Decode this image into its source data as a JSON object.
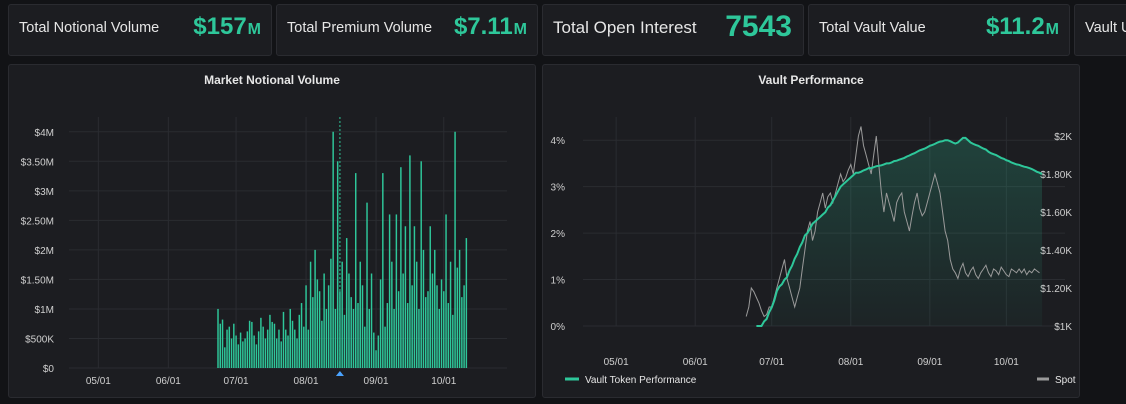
{
  "stats": [
    {
      "label": "Total Notional Volume",
      "value": "$157",
      "unit": "M"
    },
    {
      "label": "Total Premium Volume",
      "value": "$7.11",
      "unit": "M"
    },
    {
      "label": "Total Open Interest",
      "value": "7543",
      "unit": ""
    },
    {
      "label": "Total Vault Value",
      "value": "$11.2",
      "unit": "M"
    },
    {
      "label": "Vault U",
      "value": "",
      "unit": ""
    }
  ],
  "colors": {
    "accent": "#2ec79a",
    "spot": "#9a9a9a",
    "background": "#121316",
    "panel": "#1c1d21",
    "grid": "#2a2c31"
  },
  "chart_data": [
    {
      "type": "bar",
      "title": "Market Notional Volume",
      "x_ticks": [
        "05/01",
        "06/01",
        "07/01",
        "08/01",
        "09/01",
        "10/01"
      ],
      "y_ticks": [
        "$0",
        "$500K",
        "$1M",
        "$1.50M",
        "$2M",
        "$2.50M",
        "$3M",
        "$3.50M",
        "$4M"
      ],
      "ylim": [
        0,
        4250000
      ],
      "grid": true,
      "marker_date": "08/16",
      "series": [
        {
          "x_start": "06/23",
          "values": [
            1000000,
            750000,
            820000,
            350000,
            650000,
            700000,
            500000,
            750000,
            550000,
            400000,
            600000,
            450000,
            500000,
            620000,
            800000,
            780000,
            550000,
            400000,
            620000,
            850000,
            700000,
            500000,
            650000,
            900000,
            780000,
            750000,
            500000,
            650000,
            450000,
            950000,
            650000,
            550000,
            1000000,
            800000,
            650000,
            500000,
            900000,
            1100000,
            700000,
            1400000,
            650000,
            1800000,
            1200000,
            2000000,
            1500000,
            1300000,
            800000,
            1600000,
            1000000,
            1400000,
            1850000,
            4000000,
            1000000,
            3500000,
            1300000,
            1800000,
            900000,
            2200000,
            1600000,
            1200000,
            1000000,
            3300000,
            1100000,
            1800000,
            1400000,
            700000,
            2800000,
            1000000,
            1600000,
            600000,
            300000,
            550000,
            1500000,
            3300000,
            700000,
            1100000,
            2600000,
            1800000,
            1000000,
            2600000,
            1300000,
            3400000,
            1600000,
            2400000,
            1100000,
            3600000,
            1400000,
            2400000,
            1800000,
            1000000,
            3500000,
            2000000,
            1200000,
            1300000,
            2400000,
            1600000,
            2000000,
            1400000,
            1000000,
            1500000,
            1300000,
            2600000,
            1100000,
            1800000,
            900000,
            4000000,
            1700000,
            2000000,
            1200000,
            1400000,
            2200000
          ]
        }
      ]
    },
    {
      "type": "line",
      "title": "Vault Performance",
      "x_ticks": [
        "05/01",
        "06/01",
        "07/01",
        "08/01",
        "09/01",
        "10/01"
      ],
      "y_left_ticks": [
        "0%",
        "1%",
        "2%",
        "3%",
        "4%"
      ],
      "y_right_ticks": [
        "$1K",
        "$1.20K",
        "$1.40K",
        "$1.60K",
        "$1.80K",
        "$2K"
      ],
      "ylim_left": [
        0,
        4.5
      ],
      "ylim_right": [
        1000,
        2100
      ],
      "grid": true,
      "legend": "bottom",
      "series": [
        {
          "name": "Vault Token Performance",
          "axis": "left",
          "x_start": "06/25",
          "values": [
            0,
            0,
            0,
            0.1,
            0.15,
            0.3,
            0.4,
            0.55,
            0.75,
            0.85,
            0.9,
            1.0,
            1.05,
            1.2,
            1.3,
            1.45,
            1.55,
            1.7,
            1.8,
            1.95,
            2.0,
            2.1,
            2.2,
            2.25,
            2.3,
            2.35,
            2.4,
            2.45,
            2.55,
            2.6,
            2.7,
            2.8,
            2.9,
            3.0,
            3.05,
            3.1,
            3.15,
            3.2,
            3.25,
            3.3,
            3.3,
            3.32,
            3.35,
            3.37,
            3.4,
            3.4,
            3.42,
            3.44,
            3.45,
            3.46,
            3.48,
            3.5,
            3.5,
            3.52,
            3.55,
            3.56,
            3.58,
            3.6,
            3.62,
            3.65,
            3.67,
            3.7,
            3.72,
            3.75,
            3.78,
            3.8,
            3.82,
            3.85,
            3.88,
            3.9,
            3.92,
            3.95,
            3.97,
            3.98,
            4.0,
            4.0,
            3.98,
            3.95,
            3.93,
            3.95,
            4.0,
            4.05,
            4.05,
            4.0,
            3.95,
            3.92,
            3.9,
            3.88,
            3.85,
            3.82,
            3.8,
            3.75,
            3.72,
            3.7,
            3.68,
            3.65,
            3.62,
            3.6,
            3.57,
            3.55,
            3.52,
            3.5,
            3.48,
            3.47,
            3.45,
            3.43,
            3.42,
            3.4,
            3.38,
            3.35,
            3.32,
            3.3,
            3.27
          ]
        },
        {
          "name": "Spot Price",
          "axis": "right",
          "x_start": "06/21",
          "values": [
            1050,
            1100,
            1200,
            1180,
            1150,
            1120,
            1080,
            1050,
            1060,
            1100,
            1100,
            1150,
            1200,
            1250,
            1300,
            1350,
            1250,
            1200,
            1150,
            1100,
            1150,
            1200,
            1300,
            1400,
            1500,
            1550,
            1450,
            1500,
            1600,
            1650,
            1700,
            1620,
            1680,
            1700,
            1650,
            1700,
            1750,
            1800,
            1760,
            1780,
            1820,
            1850,
            1800,
            1900,
            2000,
            2050,
            1950,
            1900,
            1850,
            1800,
            1900,
            2000,
            1850,
            1700,
            1600,
            1700,
            1650,
            1600,
            1550,
            1650,
            1680,
            1700,
            1600,
            1550,
            1500,
            1580,
            1650,
            1700,
            1620,
            1580,
            1600,
            1650,
            1700,
            1750,
            1800,
            1750,
            1700,
            1600,
            1500,
            1450,
            1350,
            1300,
            1280,
            1250,
            1300,
            1330,
            1280,
            1260,
            1290,
            1310,
            1270,
            1250,
            1280,
            1300,
            1320,
            1280,
            1260,
            1300,
            1290,
            1270,
            1310,
            1290,
            1270,
            1260,
            1300,
            1290,
            1280,
            1300,
            1280,
            1300,
            1270,
            1290,
            1280,
            1300,
            1290,
            1280
          ]
        }
      ]
    }
  ]
}
